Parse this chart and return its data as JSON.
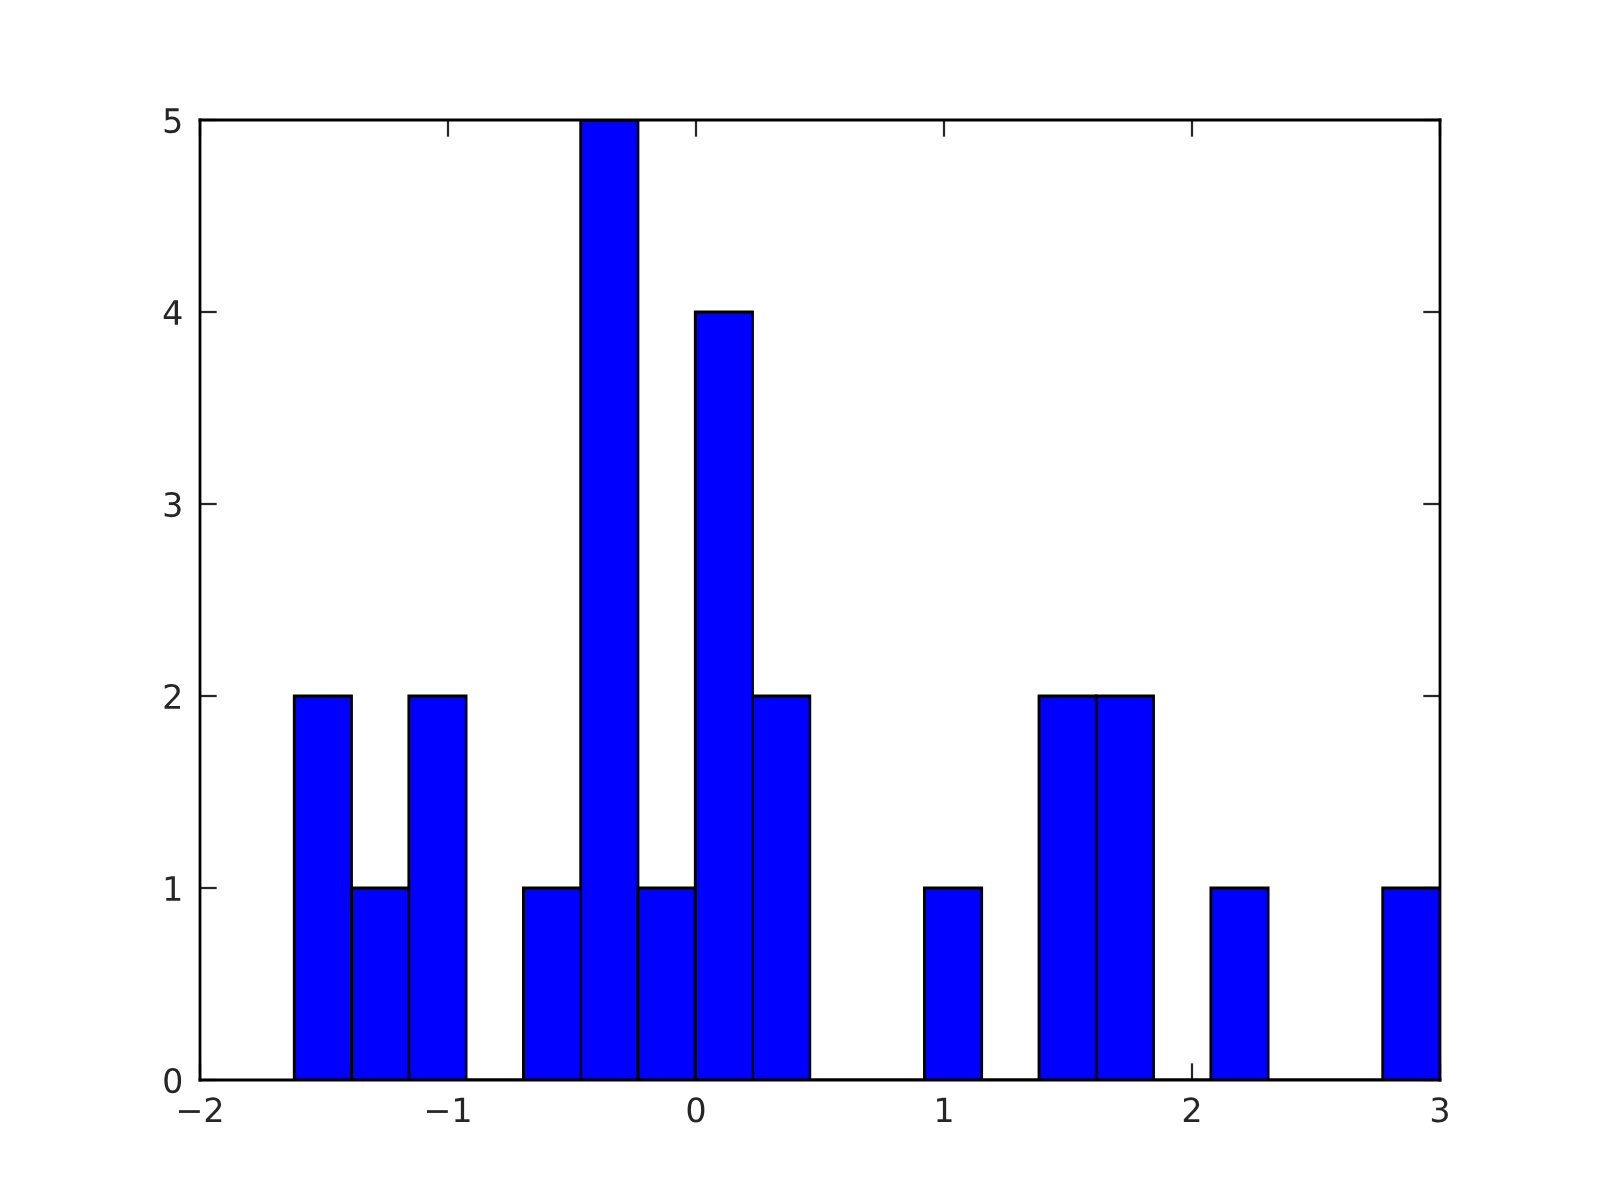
{
  "chart_data": {
    "type": "histogram",
    "bins": [
      -1.62,
      -1.389,
      -1.158,
      -0.927,
      -0.696,
      -0.465,
      -0.234,
      -0.003,
      0.228,
      0.459,
      0.69,
      0.921,
      1.152,
      1.383,
      1.614,
      1.845,
      2.076,
      2.307,
      2.538,
      2.769,
      3.0
    ],
    "values": [
      2,
      1,
      2,
      0,
      1,
      5,
      1,
      4,
      2,
      0,
      0,
      1,
      0,
      2,
      2,
      0,
      1,
      0,
      0,
      1
    ],
    "color": "#0000ff",
    "xlim": [
      -2,
      3
    ],
    "xticks": [
      {
        "value": -2,
        "label": "−2"
      },
      {
        "value": -1,
        "label": "−1"
      },
      0,
      1,
      2,
      3
    ],
    "ylim": [
      0,
      5
    ],
    "yticks": [
      0,
      1,
      2,
      3,
      4,
      5
    ],
    "grid": false
  }
}
